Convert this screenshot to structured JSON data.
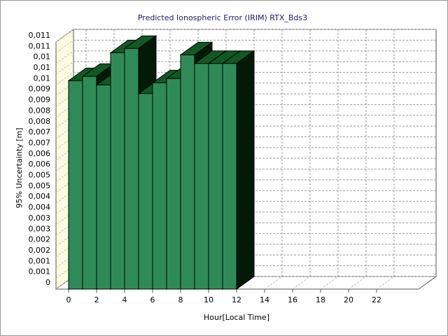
{
  "chart_data": {
    "type": "bar3d",
    "title": "Predicted Ionospheric Error (IRIM) RTX_Bds3",
    "x_label": "Hour[Local Time]",
    "y_label": "95% Uncertainty [m]",
    "x": [
      0,
      1,
      2,
      3,
      4,
      5,
      6,
      7,
      8,
      9,
      10,
      11
    ],
    "values": [
      0.0097,
      0.0099,
      0.0095,
      0.011,
      0.0112,
      0.0091,
      0.0096,
      0.0098,
      0.0109,
      0.0105,
      0.0105,
      0.0105
    ],
    "color": "#2e8b57",
    "xlim": [
      0,
      25
    ],
    "xticks": [
      0,
      2,
      4,
      6,
      8,
      10,
      12,
      14,
      16,
      18,
      20,
      22
    ],
    "ylim": [
      0,
      0.0115
    ],
    "yticks": [
      0,
      {
        "value": 0.0005,
        "label": "0,001"
      },
      {
        "value": 0.001,
        "label": "0,001"
      },
      {
        "value": 0.0015,
        "label": "0,002"
      },
      {
        "value": 0.002,
        "label": "0,002"
      },
      {
        "value": 0.0025,
        "label": "0,003"
      },
      {
        "value": 0.003,
        "label": "0,003"
      },
      {
        "value": 0.0035,
        "label": "0,004"
      },
      {
        "value": 0.004,
        "label": "0,004"
      },
      {
        "value": 0.0045,
        "label": "0,005"
      },
      {
        "value": 0.005,
        "label": "0,005"
      },
      {
        "value": 0.0055,
        "label": "0,006"
      },
      {
        "value": 0.006,
        "label": "0,006"
      },
      {
        "value": 0.0065,
        "label": "0,007"
      },
      {
        "value": 0.007,
        "label": "0,007"
      },
      {
        "value": 0.0075,
        "label": "0,008"
      },
      {
        "value": 0.008,
        "label": "0,008"
      },
      {
        "value": 0.0085,
        "label": "0,009"
      },
      {
        "value": 0.009,
        "label": "0,009"
      },
      {
        "value": 0.0095,
        "label": "0,01"
      },
      {
        "value": 0.01,
        "label": "0,01"
      },
      {
        "value": 0.0105,
        "label": "0,01"
      },
      {
        "value": 0.011,
        "label": "0,011"
      },
      {
        "value": 0.0115,
        "label": "0,011"
      }
    ],
    "grid": true
  }
}
